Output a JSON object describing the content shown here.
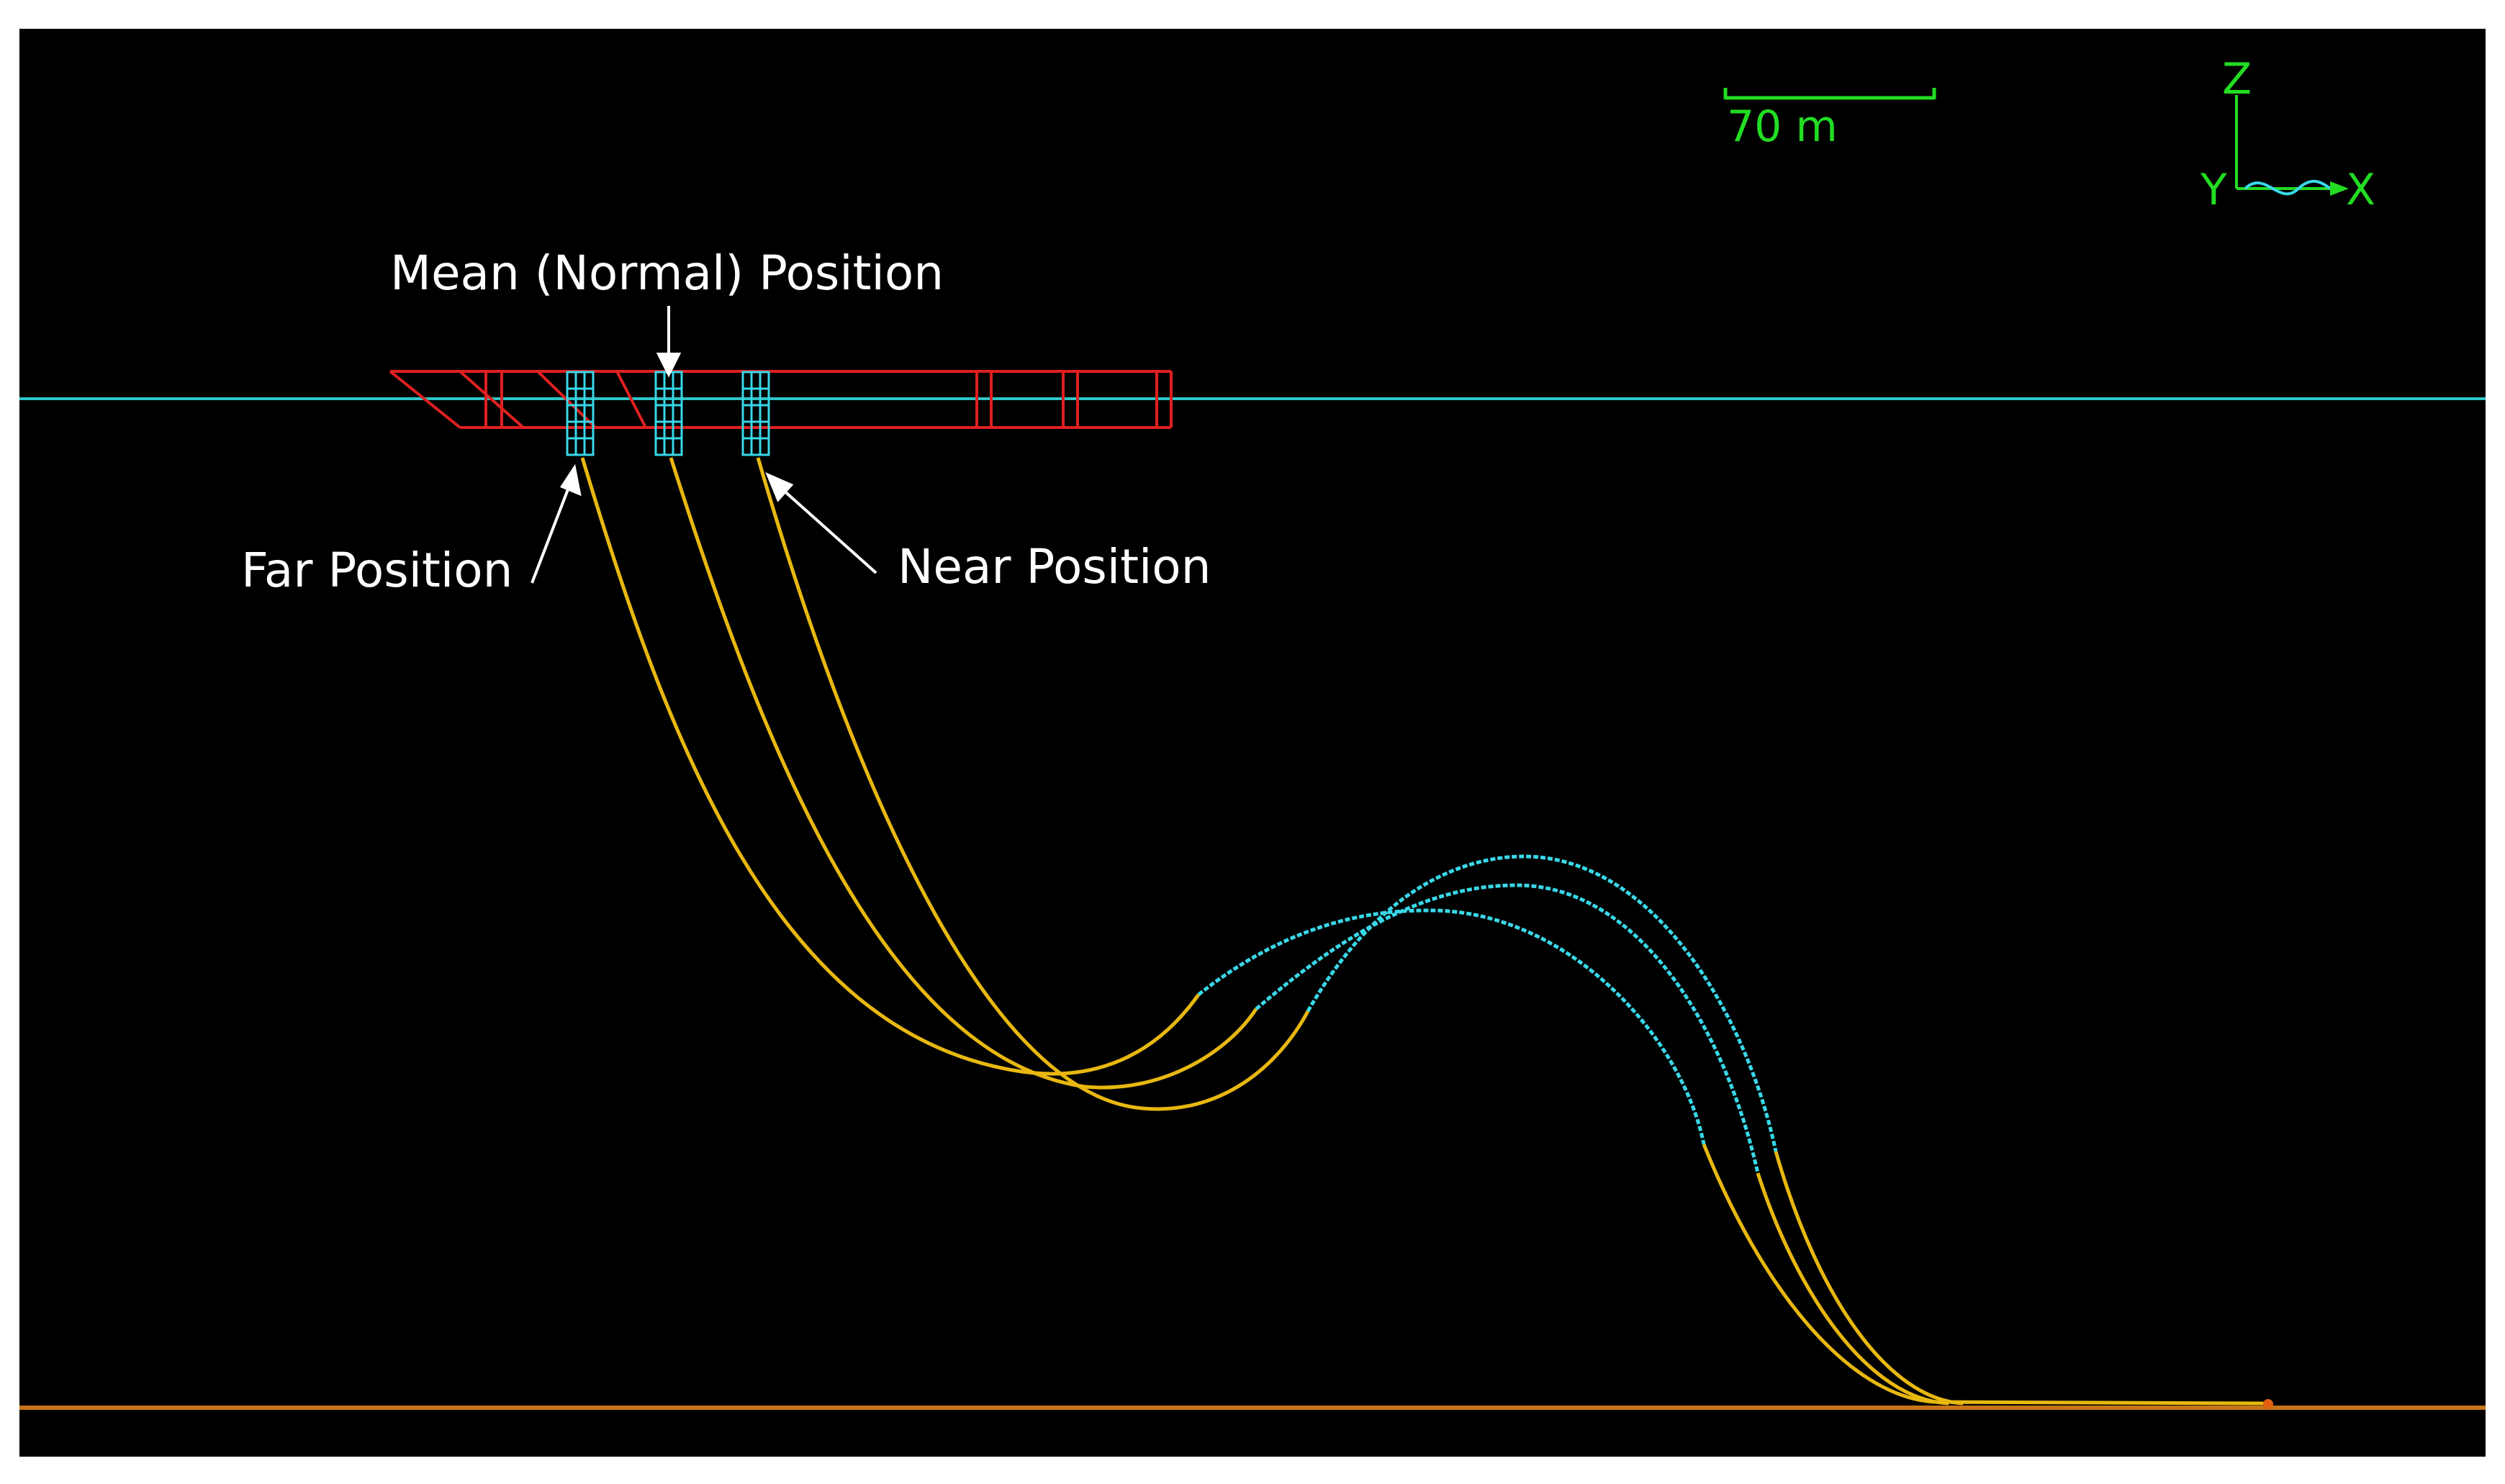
{
  "labels": {
    "mean": "Mean (Normal) Position",
    "far": "Far Position",
    "near": "Near Position"
  },
  "scale_bar": {
    "label": "70 m"
  },
  "axes": {
    "z": "Z",
    "y": "Y",
    "x": "X"
  },
  "colors": {
    "background": "#000000",
    "sea_surface": "#2ec4c8",
    "seabed": "#c8741a",
    "vessel": "#e02020",
    "riser": "#e8b810",
    "buoyancy": "#38d8e8",
    "annotation": "#ffffff",
    "scale": "#22dd22"
  },
  "risers": [
    "far",
    "mean",
    "near"
  ]
}
